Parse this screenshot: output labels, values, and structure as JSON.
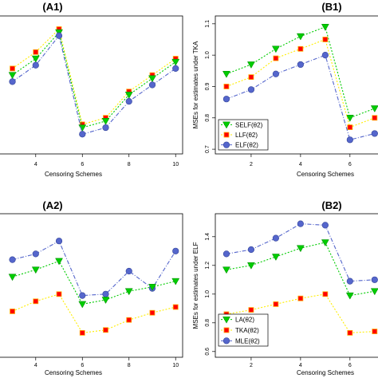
{
  "chart_data": [
    {
      "id": "A1",
      "type": "line",
      "title": "(A1)",
      "xlabel": "Censoring Schemes",
      "ylabel": "",
      "xlim": [
        2.4,
        10.3
      ],
      "ylim": [
        0.7,
        1.12
      ],
      "xticks": [
        4,
        6,
        8,
        10
      ],
      "yticks": [],
      "x": [
        3,
        4,
        5,
        6,
        7,
        8,
        9,
        10
      ],
      "series": [
        {
          "name": "",
          "color": "#ff0000",
          "marker": "square",
          "dash": "2,2",
          "values": [
            0.96,
            1.01,
            1.08,
            0.79,
            0.81,
            0.89,
            0.94,
            0.99
          ]
        },
        {
          "name": "",
          "color": "#00cc00",
          "marker": "triangle",
          "dash": "2,2",
          "values": [
            0.94,
            0.99,
            1.07,
            0.78,
            0.8,
            0.88,
            0.93,
            0.98
          ]
        },
        {
          "name": "",
          "color": "#5566cc",
          "marker": "circle",
          "dash": "5,2,1,2",
          "values": [
            0.92,
            0.97,
            1.06,
            0.76,
            0.78,
            0.86,
            0.91,
            0.96
          ]
        }
      ],
      "legend": null
    },
    {
      "id": "B1",
      "type": "line",
      "title": "(B1)",
      "xlabel": "Censoring Schemes",
      "ylabel": "MSEs for estimates under TKA",
      "xlim": [
        0.55,
        7.2
      ],
      "ylim": [
        0.685,
        1.125
      ],
      "xticks": [
        2,
        4,
        6
      ],
      "yticks": [
        0.7,
        0.8,
        0.9,
        1.0,
        1.1
      ],
      "ytick_labels": [
        "0.7",
        "0.8",
        "0.9",
        "1.0",
        "1.1"
      ],
      "x": [
        1,
        2,
        3,
        4,
        5,
        6,
        7
      ],
      "series": [
        {
          "name": "SELF(θ2)",
          "color": "#00cc00",
          "marker": "triangle",
          "dash": "2,2",
          "values": [
            0.94,
            0.97,
            1.02,
            1.06,
            1.09,
            0.8,
            0.83
          ]
        },
        {
          "name": "LLF(θ2)",
          "color": "#ff0000",
          "marker": "square",
          "dash": "2,2",
          "values": [
            0.9,
            0.93,
            0.99,
            1.02,
            1.05,
            0.77,
            0.8
          ]
        },
        {
          "name": "ELF(θ2)",
          "color": "#5566cc",
          "marker": "circle",
          "dash": "5,2,1,2",
          "values": [
            0.86,
            0.89,
            0.94,
            0.97,
            1.0,
            0.73,
            0.75
          ]
        }
      ],
      "legend": "bottom-left"
    },
    {
      "id": "A2",
      "type": "line",
      "title": "(A2)",
      "xlabel": "Censoring Schemes",
      "ylabel": "",
      "xlim": [
        2.4,
        10.3
      ],
      "ylim": [
        0.6,
        1.6
      ],
      "xticks": [
        4,
        6,
        8,
        10
      ],
      "yticks": [],
      "x": [
        3,
        4,
        5,
        6,
        7,
        8,
        9,
        10
      ],
      "series": [
        {
          "name": "",
          "color": "#5566cc",
          "marker": "circle",
          "dash": "5,2,1,2",
          "values": [
            1.28,
            1.32,
            1.41,
            1.03,
            1.04,
            1.2,
            1.08,
            1.34
          ]
        },
        {
          "name": "",
          "color": "#00cc00",
          "marker": "triangle",
          "dash": "2,2",
          "values": [
            1.16,
            1.21,
            1.27,
            0.97,
            1.0,
            1.06,
            1.09,
            1.13
          ]
        },
        {
          "name": "",
          "color": "#ff0000",
          "marker": "square",
          "dash": "2,2",
          "values": [
            0.92,
            0.99,
            1.04,
            0.77,
            0.79,
            0.86,
            0.91,
            0.95
          ]
        }
      ],
      "legend": null
    },
    {
      "id": "B2",
      "type": "line",
      "title": "(B2)",
      "xlabel": "Censoring Schemes",
      "ylabel": "MSEs for estimates under ELF",
      "xlim": [
        0.55,
        7.2
      ],
      "ylim": [
        0.56,
        1.56
      ],
      "xticks": [
        2,
        4,
        6
      ],
      "yticks": [
        0.6,
        0.8,
        1.0,
        1.2,
        1.4
      ],
      "ytick_labels": [
        "0.6",
        "0.8",
        "1.0",
        "1.2",
        "1.4"
      ],
      "x": [
        1,
        2,
        3,
        4,
        5,
        6,
        7
      ],
      "series": [
        {
          "name": "LA(θ2)",
          "color": "#00cc00",
          "marker": "triangle",
          "dash": "2,2",
          "values": [
            1.17,
            1.2,
            1.26,
            1.32,
            1.36,
            0.99,
            1.02
          ]
        },
        {
          "name": "TKA(θ2)",
          "color": "#ff0000",
          "marker": "square",
          "dash": "2,2",
          "values": [
            0.86,
            0.89,
            0.93,
            0.97,
            1.0,
            0.73,
            0.74
          ]
        },
        {
          "name": "MLE(θ2)",
          "color": "#5566cc",
          "marker": "circle",
          "dash": "5,2,1,2",
          "values": [
            1.28,
            1.31,
            1.39,
            1.49,
            1.48,
            1.09,
            1.1
          ]
        }
      ],
      "legend": "bottom-left"
    }
  ]
}
